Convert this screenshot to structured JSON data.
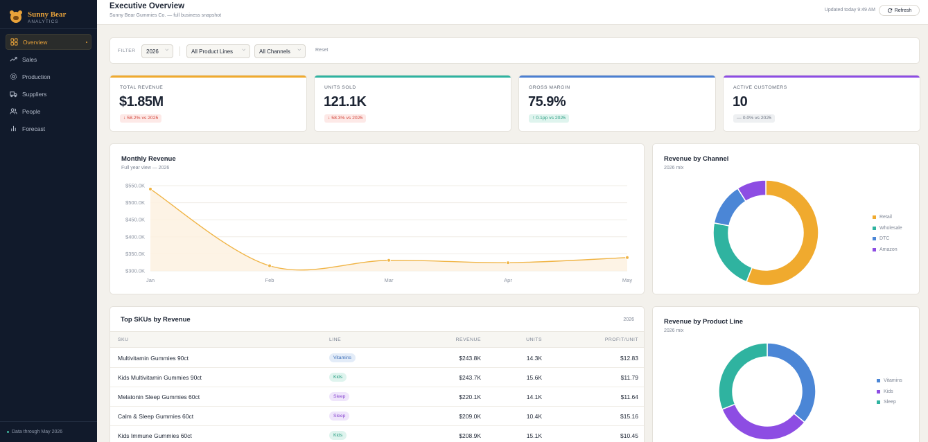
{
  "brand": {
    "name": "Sunny Bear",
    "sub": "ANALYTICS"
  },
  "sidebar": {
    "items": [
      {
        "label": "Overview",
        "icon": "grid-icon",
        "active": true
      },
      {
        "label": "Sales",
        "icon": "trend-up-icon"
      },
      {
        "label": "Production",
        "icon": "gear-icon"
      },
      {
        "label": "Suppliers",
        "icon": "truck-icon"
      },
      {
        "label": "People",
        "icon": "users-icon"
      },
      {
        "label": "Forecast",
        "icon": "bar-chart-icon"
      }
    ],
    "footer": "Data through May 2026"
  },
  "header": {
    "title": "Executive Overview",
    "subtitle": "Sunny Bear Gummies Co. — full business snapshot",
    "updated": "Updated today 9:49 AM",
    "refresh_label": "Refresh"
  },
  "filters": {
    "label": "FILTER",
    "year": "2026",
    "product_line": "All Product Lines",
    "channel": "All Channels",
    "reset_label": "Reset"
  },
  "kpis": [
    {
      "label": "TOTAL REVENUE",
      "value": "$1.85M",
      "delta": "58.2% vs 2025",
      "direction": "down",
      "accent": "#f0aa2e"
    },
    {
      "label": "UNITS SOLD",
      "value": "121.1K",
      "delta": "58.3% vs 2025",
      "direction": "down",
      "accent": "#2fb3a0"
    },
    {
      "label": "GROSS MARGIN",
      "value": "75.9%",
      "delta": "0.1pp vs 2025",
      "direction": "up",
      "accent": "#4b7fd1"
    },
    {
      "label": "ACTIVE CUSTOMERS",
      "value": "10",
      "delta": "0.0% vs 2025",
      "direction": "flat",
      "accent": "#8d4de3"
    }
  ],
  "monthly_revenue": {
    "title": "Monthly Revenue",
    "subtitle": "Full year view — 2026",
    "chart_data": {
      "type": "area",
      "categories": [
        "Jan",
        "Feb",
        "Mar",
        "Apr",
        "May"
      ],
      "values": [
        540,
        315,
        331,
        324,
        339
      ],
      "ylim": [
        300,
        550
      ],
      "yticks": [
        300,
        350,
        400,
        450,
        500,
        550
      ],
      "ytick_labels": [
        "$300.0K",
        "$350.0K",
        "$400.0K",
        "$450.0K",
        "$500.0K",
        "$550.0K"
      ],
      "color": "#f0b445",
      "grid": true
    }
  },
  "revenue_by_channel": {
    "title": "Revenue by Channel",
    "subtitle": "2026 mix",
    "chart_data": {
      "type": "pie",
      "labels": [
        "Retail",
        "Wholesale",
        "DTC",
        "Amazon"
      ],
      "values": [
        56,
        22,
        13,
        9
      ],
      "colors": [
        "#f0aa2e",
        "#2fb3a0",
        "#4b86d6",
        "#8d4de3"
      ],
      "legend": "right"
    }
  },
  "revenue_by_product_line": {
    "title": "Revenue by Product Line",
    "subtitle": "2026 mix",
    "chart_data": {
      "type": "pie",
      "labels": [
        "Vitamins",
        "Kids",
        "Sleep"
      ],
      "values": [
        36,
        33,
        31
      ],
      "colors": [
        "#4b86d6",
        "#8d4de3",
        "#2fb3a0"
      ],
      "legend": "right"
    }
  },
  "top_skus": {
    "title": "Top SKUs by Revenue",
    "year": "2026",
    "columns": [
      "SKU",
      "LINE",
      "REVENUE",
      "UNITS",
      "PROFIT/UNIT"
    ],
    "rows": [
      {
        "sku": "Multivitamin Gummies 90ct",
        "line": "Vitamins",
        "revenue": "$243.8K",
        "units": "14.3K",
        "ppu": "$12.83"
      },
      {
        "sku": "Kids Multivitamin Gummies 90ct",
        "line": "Kids",
        "revenue": "$243.7K",
        "units": "15.6K",
        "ppu": "$11.79"
      },
      {
        "sku": "Melatonin Sleep Gummies 60ct",
        "line": "Sleep",
        "revenue": "$220.1K",
        "units": "14.1K",
        "ppu": "$11.64"
      },
      {
        "sku": "Calm & Sleep Gummies 60ct",
        "line": "Sleep",
        "revenue": "$209.0K",
        "units": "10.4K",
        "ppu": "$15.16"
      },
      {
        "sku": "Kids Immune Gummies 60ct",
        "line": "Kids",
        "revenue": "$208.9K",
        "units": "15.1K",
        "ppu": "$10.45"
      }
    ]
  }
}
